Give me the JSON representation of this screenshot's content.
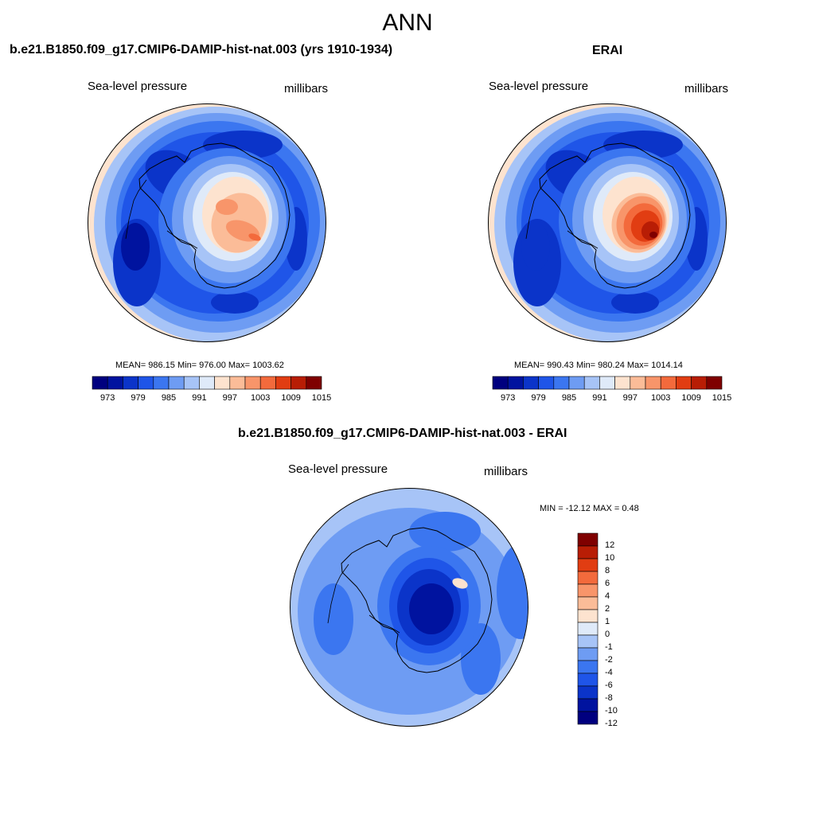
{
  "title": "ANN",
  "panels": [
    {
      "title": "b.e21.B1850.f09_g17.CMIP6-DAMIP-hist-nat.003 (yrs 1910-1934)",
      "left_label": "Sea-level pressure",
      "right_label": "millibars",
      "stats": "MEAN= 986.15  Min= 976.00  Max= 1003.62",
      "colorbar_ticks": [
        "973",
        "979",
        "985",
        "991",
        "997",
        "1003",
        "1009",
        "1015"
      ]
    },
    {
      "title": "ERAI",
      "left_label": "Sea-level pressure",
      "right_label": "millibars",
      "stats": "MEAN= 990.43  Min= 980.24  Max= 1014.14",
      "colorbar_ticks": [
        "973",
        "979",
        "985",
        "991",
        "997",
        "1003",
        "1009",
        "1015"
      ]
    },
    {
      "title": "b.e21.B1850.f09_g17.CMIP6-DAMIP-hist-nat.003 - ERAI",
      "left_label": "Sea-level pressure",
      "right_label": "millibars",
      "stats": "MIN = -12.12 MAX =   0.48",
      "colorbar_ticks": [
        "12",
        "10",
        "8",
        "6",
        "4",
        "2",
        "1",
        "0",
        "-1",
        "-2",
        "-4",
        "-6",
        "-8",
        "-10",
        "-12"
      ]
    }
  ],
  "chart_data": [
    {
      "type": "heatmap",
      "title": "b.e21.B1850.f09_g17.CMIP6-DAMIP-hist-nat.003 (yrs 1910-1934)",
      "variable": "Sea-level pressure",
      "units": "millibars",
      "projection": "south polar stereographic",
      "mean": 986.15,
      "min": 976.0,
      "max": 1003.62,
      "levels": [
        973,
        976,
        979,
        982,
        985,
        988,
        991,
        994,
        997,
        1000,
        1003,
        1006,
        1009,
        1012,
        1015
      ]
    },
    {
      "type": "heatmap",
      "title": "ERAI",
      "variable": "Sea-level pressure",
      "units": "millibars",
      "projection": "south polar stereographic",
      "mean": 990.43,
      "min": 980.24,
      "max": 1014.14,
      "levels": [
        973,
        976,
        979,
        982,
        985,
        988,
        991,
        994,
        997,
        1000,
        1003,
        1006,
        1009,
        1012,
        1015
      ]
    },
    {
      "type": "heatmap",
      "title": "b.e21.B1850.f09_g17.CMIP6-DAMIP-hist-nat.003 - ERAI",
      "variable": "Sea-level pressure",
      "units": "millibars",
      "projection": "south polar stereographic",
      "min": -12.12,
      "max": 0.48,
      "levels": [
        -12,
        -10,
        -8,
        -6,
        -4,
        -2,
        -1,
        0,
        1,
        2,
        4,
        6,
        8,
        10,
        12
      ]
    }
  ],
  "colors": {
    "palette": [
      "#00007f",
      "#00139f",
      "#0b34c9",
      "#1f55e8",
      "#3b76f0",
      "#6e9cf3",
      "#a7c4f7",
      "#dfeaf9",
      "#fde3cf",
      "#fbbc98",
      "#f8956a",
      "#f36a3c",
      "#e13d12",
      "#b81d05",
      "#7f0000"
    ]
  }
}
